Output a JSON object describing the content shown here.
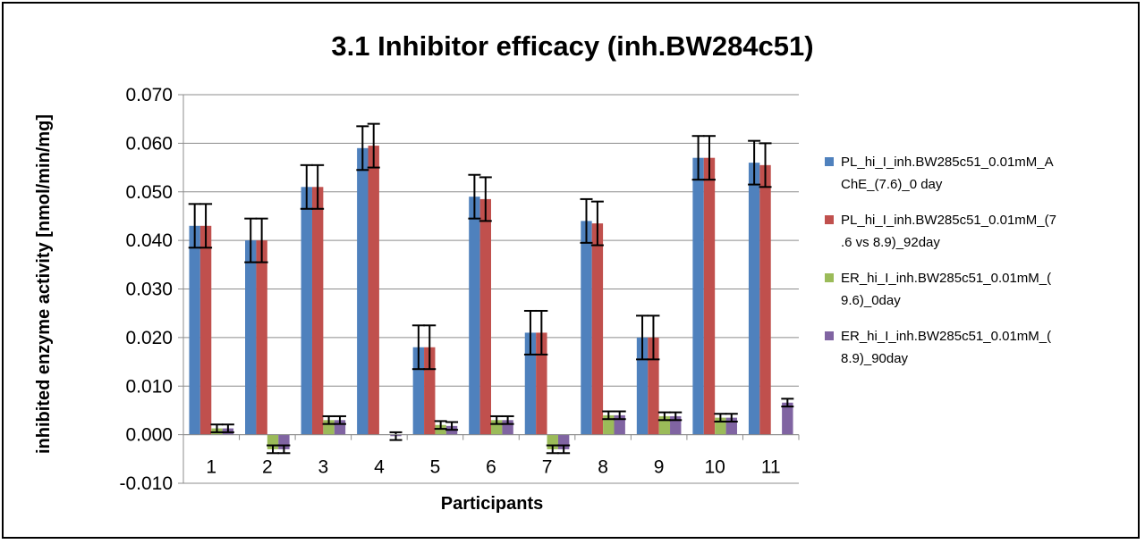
{
  "chart_data": {
    "type": "bar",
    "title": "3.1 Inhibitor efficacy (inh.BW284c51)",
    "xlabel": "Participants",
    "ylabel": "inhibited enzyme activity [nmol/min/mg]",
    "ylim": [
      -0.01,
      0.07
    ],
    "ytick_step": 0.01,
    "ytick_decimals": 3,
    "grid": "horizontal",
    "legend_position": "right",
    "categories": [
      "1",
      "2",
      "3",
      "4",
      "5",
      "6",
      "7",
      "8",
      "9",
      "10",
      "11"
    ],
    "series": [
      {
        "legend_lines": [
          "PL_hi_I_inh.BW285c51_0.01mM_A",
          "ChE_(7.6)_0 day"
        ],
        "color": "#4F81BD",
        "values": [
          0.043,
          0.04,
          0.051,
          0.059,
          0.018,
          0.049,
          0.021,
          0.044,
          0.02,
          0.057,
          0.056
        ],
        "errors": [
          0.0045,
          0.0045,
          0.0045,
          0.0045,
          0.0045,
          0.0045,
          0.0045,
          0.0045,
          0.0045,
          0.0045,
          0.0045
        ]
      },
      {
        "legend_lines": [
          "PL_hi_I_inh.BW285c51_0.01mM_(7",
          ".6 vs 8.9)_92day"
        ],
        "color": "#C0504D",
        "values": [
          0.043,
          0.04,
          0.051,
          0.0595,
          0.018,
          0.0485,
          0.021,
          0.0435,
          0.02,
          0.057,
          0.0555
        ],
        "errors": [
          0.0045,
          0.0045,
          0.0045,
          0.0045,
          0.0045,
          0.0045,
          0.0045,
          0.0045,
          0.0045,
          0.0045,
          0.0045
        ]
      },
      {
        "legend_lines": [
          "ER_hi_I_inh.BW285c51_0.01mM_(",
          "9.6)_0day"
        ],
        "color": "#9BBB59",
        "values": [
          0.0013,
          -0.003,
          0.003,
          0.0,
          0.002,
          0.003,
          -0.003,
          0.004,
          0.0038,
          0.0035,
          0.0
        ],
        "errors": [
          0.0008,
          0.0008,
          0.0008,
          0.0,
          0.0008,
          0.0008,
          0.0008,
          0.0008,
          0.0008,
          0.0008,
          0.0
        ]
      },
      {
        "legend_lines": [
          "ER_hi_I_inh.BW285c51_0.01mM_(",
          "8.9)_90day"
        ],
        "color": "#8064A2",
        "values": [
          0.0013,
          -0.003,
          0.003,
          -0.0003,
          0.0018,
          0.003,
          -0.003,
          0.004,
          0.0038,
          0.0035,
          0.0066
        ],
        "errors": [
          0.0008,
          0.0008,
          0.0008,
          0.0008,
          0.0008,
          0.0008,
          0.0008,
          0.0008,
          0.0008,
          0.0008,
          0.0008
        ]
      }
    ]
  }
}
